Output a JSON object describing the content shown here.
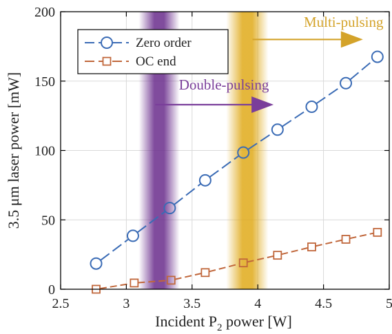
{
  "chart_data": {
    "type": "line",
    "xlabel": "Incident P",
    "xlabel_sub": "2",
    "xlabel_suffix": " power [W]",
    "ylabel": "3.5 μm laser power [mW]",
    "xlim": [
      2.5,
      5
    ],
    "ylim": [
      0,
      200
    ],
    "x_ticks": [
      "2.5",
      "3",
      "3.5",
      "4",
      "4.5",
      "5"
    ],
    "y_ticks": [
      "0",
      "50",
      "100",
      "150",
      "200"
    ],
    "grid": true,
    "legend_position": "top-left",
    "series": [
      {
        "name": "Zero order",
        "marker": "circle",
        "color": "#3a6bb5",
        "x": [
          2.77,
          3.05,
          3.33,
          3.6,
          3.89,
          4.15,
          4.41,
          4.67,
          4.91
        ],
        "y": [
          18.5,
          38.5,
          58.5,
          78.5,
          98.5,
          115,
          131.5,
          148.5,
          167.5
        ]
      },
      {
        "name": "OC end",
        "marker": "square",
        "color": "#c0663a",
        "x": [
          2.77,
          3.06,
          3.34,
          3.6,
          3.89,
          4.15,
          4.41,
          4.67,
          4.91
        ],
        "y": [
          0,
          4.5,
          6.5,
          12,
          19,
          24.5,
          30.5,
          36,
          41
        ]
      }
    ],
    "bands": [
      {
        "center": 3.25,
        "halfwidth": 0.155,
        "color": "#6a2d8c"
      },
      {
        "center": 3.92,
        "halfwidth": 0.16,
        "color": "#e0aa1a"
      }
    ],
    "annotations": [
      {
        "text": "Double-pulsing",
        "x": 3.4,
        "y": 144,
        "color": "#7a3e9a",
        "arrow_from": [
          3.22,
          133
        ],
        "arrow_to": [
          4.12,
          133
        ]
      },
      {
        "text": "Multi-pulsing",
        "x": 4.35,
        "y": 189,
        "color": "#d4a32a",
        "arrow_from": [
          3.96,
          180
        ],
        "arrow_to": [
          4.8,
          180
        ]
      }
    ]
  }
}
